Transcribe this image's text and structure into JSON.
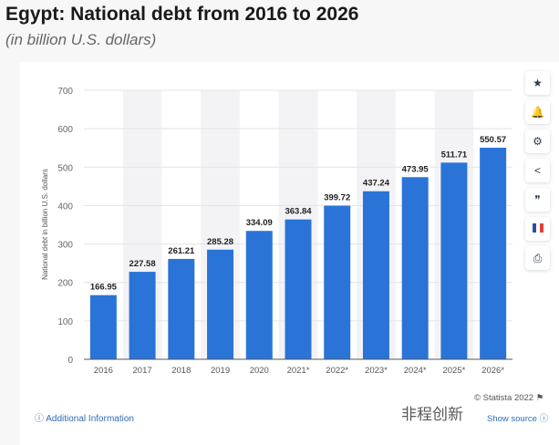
{
  "title": "Egypt: National debt from 2016 to 2026",
  "subtitle": "(in billion U.S. dollars)",
  "toolbar": [
    {
      "icon": "star-icon",
      "g": "★"
    },
    {
      "icon": "bell-icon",
      "g": "🔔"
    },
    {
      "icon": "gear-icon",
      "g": "⚙"
    },
    {
      "icon": "share-icon",
      "g": "<"
    },
    {
      "icon": "quote-icon",
      "g": "❞"
    },
    {
      "icon": "french-flag-icon",
      "g": ""
    },
    {
      "icon": "print-icon",
      "g": "⎙"
    }
  ],
  "footer": {
    "additional_info": "Additional Information",
    "copyright": "© Statista 2022",
    "show_source": "Show source",
    "watermark": "非程创新"
  },
  "colors": {
    "bar": "#2a74d8",
    "band": "#f3f3f6"
  },
  "chart_data": {
    "type": "bar",
    "title": "Egypt: National debt from 2016 to 2026",
    "ylabel": "National debt in billion U.S. dollars",
    "xlabel": "",
    "categories": [
      "2016",
      "2017",
      "2018",
      "2019",
      "2020",
      "2021*",
      "2022*",
      "2023*",
      "2024*",
      "2025*",
      "2026*"
    ],
    "values": [
      166.95,
      227.58,
      261.21,
      285.28,
      334.09,
      363.84,
      399.72,
      437.24,
      473.95,
      511.71,
      550.57
    ],
    "ylim": [
      0,
      700
    ],
    "yticks": [
      0,
      100,
      200,
      300,
      400,
      500,
      600,
      700
    ],
    "grid": true,
    "legend": "none"
  }
}
